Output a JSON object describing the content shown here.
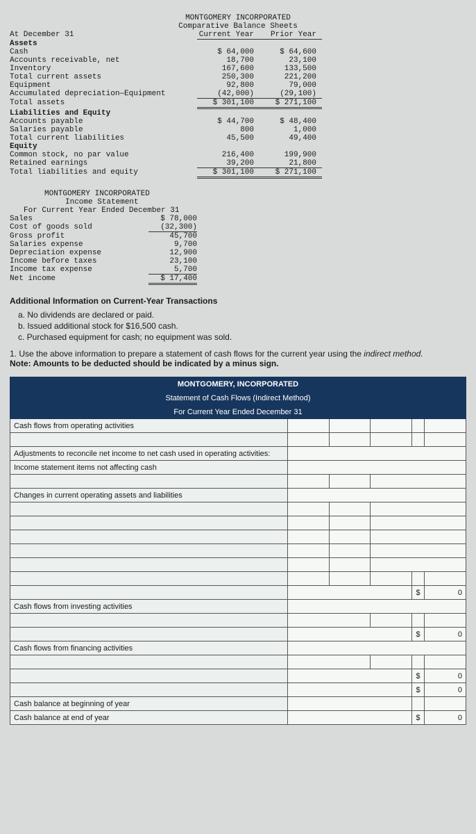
{
  "balance_sheet": {
    "company": "MONTGOMERY INCORPORATED",
    "title": "Comparative Balance Sheets",
    "date_label": "At December 31",
    "col1": "Current Year",
    "col2": "Prior Year",
    "rows": [
      {
        "label": "Assets",
        "c1": "",
        "c2": "",
        "style": "bold"
      },
      {
        "label": "Cash",
        "c1": "$ 64,000",
        "c2": "$ 64,600"
      },
      {
        "label": "Accounts receivable, net",
        "c1": "18,700",
        "c2": "23,100"
      },
      {
        "label": "Inventory",
        "c1": "167,600",
        "c2": "133,500"
      },
      {
        "label": "Total current assets",
        "c1": "250,300",
        "c2": "221,200"
      },
      {
        "label": "Equipment",
        "c1": "92,800",
        "c2": "79,000"
      },
      {
        "label": "Accumulated depreciation—Equipment",
        "c1": "(42,000)",
        "c2": "(29,100)",
        "ul": true
      },
      {
        "label": "Total assets",
        "c1": "$ 301,100",
        "c2": "$ 271,100",
        "dbl": true
      },
      {
        "label": "Liabilities and Equity",
        "c1": "",
        "c2": "",
        "style": "bold"
      },
      {
        "label": "Accounts payable",
        "c1": "$ 44,700",
        "c2": "$ 48,400"
      },
      {
        "label": "Salaries payable",
        "c1": "800",
        "c2": "1,000"
      },
      {
        "label": "Total current liabilities",
        "c1": "45,500",
        "c2": "49,400"
      },
      {
        "label": "Equity",
        "c1": "",
        "c2": "",
        "style": "bold"
      },
      {
        "label": "Common stock, no par value",
        "c1": "216,400",
        "c2": "199,900"
      },
      {
        "label": "Retained earnings",
        "c1": "39,200",
        "c2": "21,800",
        "ul": true
      },
      {
        "label": "Total liabilities and equity",
        "c1": "$ 301,100",
        "c2": "$ 271,100",
        "dbl": true
      }
    ]
  },
  "income_statement": {
    "company": "MONTGOMERY INCORPORATED",
    "title": "Income Statement",
    "period": "For Current Year Ended December 31",
    "rows": [
      {
        "label": "Sales",
        "val": "$ 78,000"
      },
      {
        "label": "Cost of goods sold",
        "val": "(32,300)",
        "ul": true
      },
      {
        "label": "Gross profit",
        "val": "45,700"
      },
      {
        "label": "Salaries expense",
        "val": "9,700"
      },
      {
        "label": "Depreciation expense",
        "val": "12,900"
      },
      {
        "label": "Income before taxes",
        "val": "23,100"
      },
      {
        "label": "Income tax expense",
        "val": "5,700",
        "ul": true
      },
      {
        "label": "Net income",
        "val": "$ 17,400",
        "dbl": true
      }
    ]
  },
  "additional": {
    "heading": "Additional Information on Current-Year Transactions",
    "a": "a. No dividends are declared or paid.",
    "b": "b. Issued additional stock for $16,500 cash.",
    "c": "c. Purchased equipment for cash; no equipment was sold."
  },
  "instruction": {
    "num": "1. Use the above information to prepare a statement of cash flows for the current year using the ",
    "ital": "indirect method.",
    "note": "Note: Amounts to be deducted should be indicated by a minus sign."
  },
  "cashflow": {
    "h1": "MONTGOMERY, INCORPORATED",
    "h2": "Statement of Cash Flows (Indirect Method)",
    "h3": "For Current Year Ended December 31",
    "sec_operating": "Cash flows from operating activities",
    "adj_head": "Adjustments to reconcile net income to net cash used in operating activities:",
    "adj_sub": "Income statement items not affecting cash",
    "changes": "Changes in current operating assets and liabilities",
    "sec_investing": "Cash flows from investing activities",
    "sec_financing": "Cash flows from financing activities",
    "beg": "Cash balance at beginning of year",
    "end": "Cash balance at end of year",
    "sym": "$",
    "zero": "0"
  }
}
